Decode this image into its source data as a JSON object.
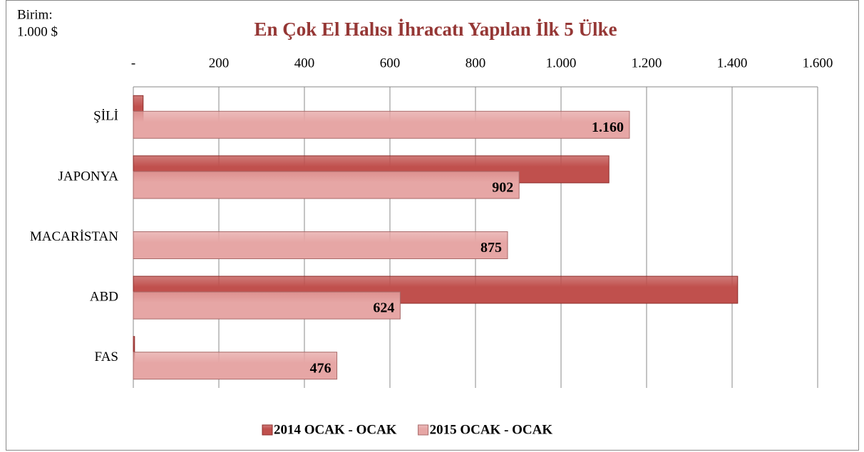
{
  "chart_data": {
    "type": "bar",
    "orientation": "horizontal",
    "title": "En Çok El Halısı İhracatı Yapılan İlk 5 Ülke",
    "unit_label": [
      "Birim:",
      "1.000 $"
    ],
    "categories": [
      "ŞİLİ",
      "JAPONYA",
      "MACARİSTAN",
      "ABD",
      "FAS"
    ],
    "series": [
      {
        "name": "2014 OCAK - OCAK",
        "color": "#c0504d",
        "values": [
          23,
          1112,
          0,
          1413,
          3
        ]
      },
      {
        "name": "2015 OCAK - OCAK",
        "color": "#e6a6a5",
        "values": [
          1160,
          902,
          875,
          624,
          476
        ],
        "value_labels": [
          "1.160",
          "902",
          "875",
          "624",
          "476"
        ]
      }
    ],
    "xlim": [
      0,
      1600
    ],
    "xticks": [
      {
        "value": 0,
        "label": "-"
      },
      200,
      400,
      600,
      800,
      {
        "value": 1000,
        "label": "1.000"
      },
      {
        "value": 1200,
        "label": "1.200"
      },
      {
        "value": 1400,
        "label": "1.400"
      },
      {
        "value": 1600,
        "label": "1.600"
      }
    ],
    "grid": true,
    "legend": "bottom"
  }
}
